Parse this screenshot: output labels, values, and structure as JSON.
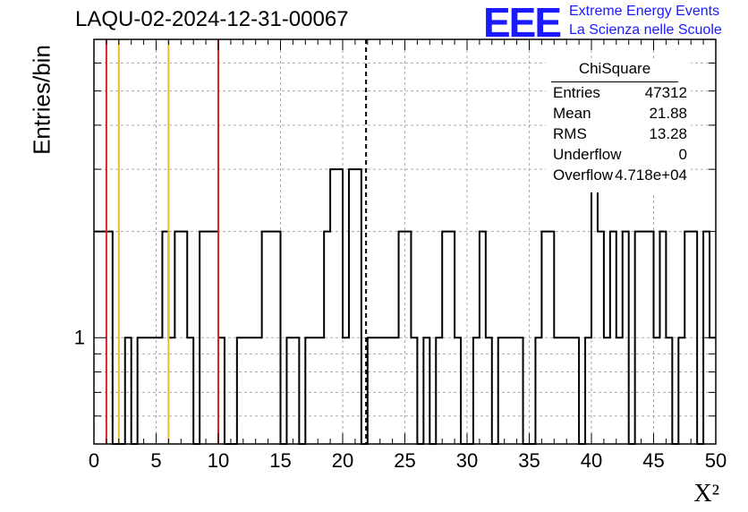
{
  "title": "LAQU-02-2024-12-31-00067",
  "logo": {
    "mark": "EEE",
    "line1": "Extreme Energy Events",
    "line2": "La Scienza nelle Scuole",
    "color": "#1a1aff"
  },
  "stats_box": {
    "title": "ChiSquare",
    "rows": [
      {
        "key": "Entries",
        "value": "47312"
      },
      {
        "key": "Mean",
        "value": "21.88"
      },
      {
        "key": "RMS",
        "value": "13.28"
      },
      {
        "key": "Underflow",
        "value": "0"
      },
      {
        "key": "Overflow",
        "value": "4.718e+04"
      }
    ]
  },
  "chart_data": {
    "type": "histogram",
    "title": "LAQU-02-2024-12-31-00067",
    "xlabel": "X²",
    "ylabel": "Entries/bin",
    "xlim": [
      0,
      50
    ],
    "ylog": true,
    "ylim": [
      0.5,
      7
    ],
    "grid": true,
    "x_ticks": [
      0,
      5,
      10,
      15,
      20,
      25,
      30,
      35,
      40,
      45,
      50
    ],
    "y_tick_labels": [
      {
        "value": 1,
        "label": "1"
      }
    ],
    "bin_width": 0.5,
    "bin_counts": [
      2,
      2,
      2,
      0,
      0,
      1,
      0,
      1,
      1,
      1,
      1,
      2,
      1,
      2,
      2,
      1,
      0,
      2,
      2,
      2,
      1,
      0,
      0,
      1,
      1,
      1,
      1,
      2,
      2,
      2,
      0,
      1,
      1,
      0,
      1,
      1,
      1,
      2,
      3,
      3,
      1,
      3,
      3,
      0,
      1,
      1,
      1,
      1,
      1,
      2,
      2,
      1,
      0,
      1,
      0,
      1,
      2,
      2,
      1,
      0,
      0,
      1,
      2,
      1,
      0,
      1,
      1,
      1,
      1,
      0,
      0,
      1,
      2,
      2,
      1,
      1,
      1,
      1,
      0,
      1,
      3,
      2,
      1,
      2,
      1,
      2,
      0,
      2,
      2,
      2,
      1,
      2,
      1,
      0,
      1,
      2,
      2,
      0,
      2,
      1
    ],
    "vertical_lines": [
      {
        "x": 1,
        "color": "#dd2222",
        "style": "solid"
      },
      {
        "x": 2,
        "color": "#eebb22",
        "style": "solid"
      },
      {
        "x": 6,
        "color": "#eebb22",
        "style": "solid"
      },
      {
        "x": 10,
        "color": "#dd2222",
        "style": "solid"
      },
      {
        "x": 21.88,
        "color": "#000000",
        "style": "dashed"
      }
    ]
  }
}
